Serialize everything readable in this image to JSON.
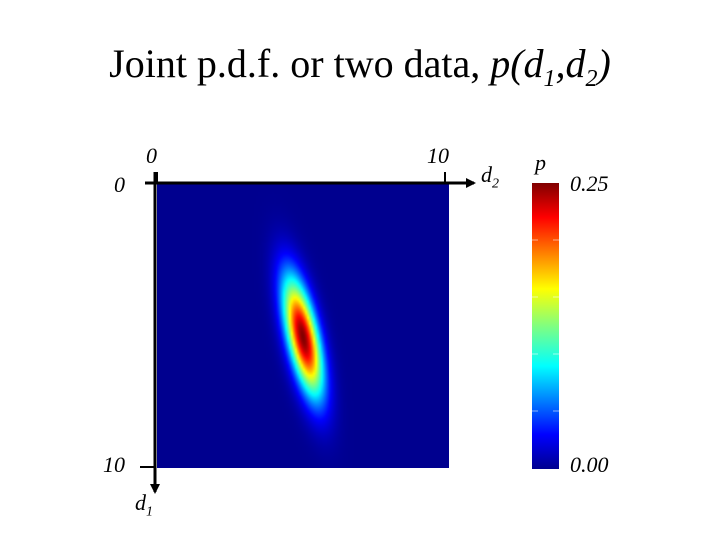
{
  "title": {
    "text": "Joint p.d.f. or two data, ",
    "math": {
      "p": "p(d",
      "sub1": "1",
      "comma": ",d",
      "sub2": "2",
      "close": ")"
    }
  },
  "axes": {
    "d2": {
      "name": "d",
      "sub": "2",
      "tick_start": "0",
      "tick_end": "10"
    },
    "d1": {
      "name": "d",
      "sub": "1",
      "tick_start": "0",
      "tick_end": "10"
    }
  },
  "colorbar": {
    "label": "p",
    "max_label": "0.25",
    "min_label": "0.00",
    "max": 0.25,
    "min": 0.0
  },
  "distribution": {
    "mean_d1": 5.4,
    "mean_d2": 5.0,
    "peak_p": 0.25,
    "colormap": "jet",
    "background_color": "#00008f"
  }
}
